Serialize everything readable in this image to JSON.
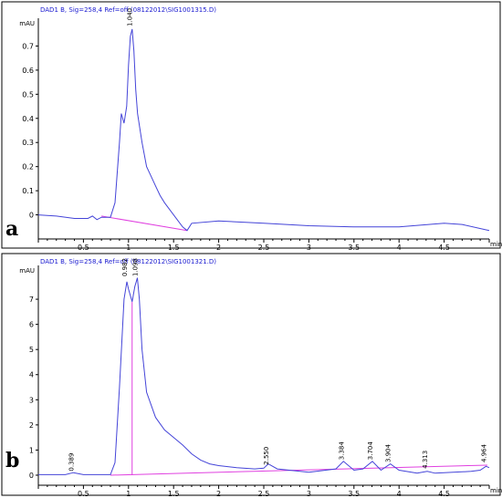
{
  "colors": {
    "trace": "#4444d8",
    "baseline": "#e040e0",
    "header": "#1a1ad0"
  },
  "chart_data": [
    {
      "panel": "a",
      "type": "line",
      "title": "DAD1 B, Sig=258,4 Ref=off (08122012\\SIG1001315.D)",
      "ylabel": "mAU",
      "xlabel": "min",
      "xlim": [
        0,
        5
      ],
      "ylim": [
        -0.1,
        0.8
      ],
      "xticks": [
        "0.5",
        "1",
        "1.5",
        "2",
        "2.5",
        "3",
        "3.5",
        "4",
        "4.5"
      ],
      "yticks": [
        "0",
        "0.1",
        "0.2",
        "0.3",
        "0.4",
        "0.5",
        "0.6",
        "0.7"
      ],
      "peak_labels": [
        {
          "x": 1.04,
          "y": 0.77,
          "label": "1.040"
        }
      ],
      "integration_baselines": [
        {
          "x": [
            0.7,
            1.65
          ],
          "y": [
            -0.005,
            -0.065
          ]
        }
      ],
      "series": [
        {
          "x": [
            0.0,
            0.2,
            0.4,
            0.55,
            0.6,
            0.65,
            0.7,
            0.8,
            0.85,
            0.9,
            0.92,
            0.95,
            0.98,
            1.0,
            1.02,
            1.04,
            1.06,
            1.08,
            1.1,
            1.15,
            1.2,
            1.25,
            1.3,
            1.35,
            1.4,
            1.5,
            1.6,
            1.65,
            1.7,
            2.0,
            2.5,
            3.0,
            3.5,
            4.0,
            4.5,
            4.7,
            5.0
          ],
          "y": [
            0.0,
            -0.005,
            -0.015,
            -0.015,
            -0.005,
            -0.02,
            -0.01,
            -0.01,
            0.05,
            0.3,
            0.42,
            0.38,
            0.45,
            0.62,
            0.74,
            0.77,
            0.68,
            0.52,
            0.42,
            0.3,
            0.2,
            0.16,
            0.12,
            0.08,
            0.05,
            0.0,
            -0.05,
            -0.065,
            -0.035,
            -0.025,
            -0.035,
            -0.045,
            -0.05,
            -0.05,
            -0.035,
            -0.04,
            -0.065
          ]
        }
      ]
    },
    {
      "panel": "b",
      "type": "line",
      "title": "DAD1 B, Sig=258,4 Ref=off (08122012\\SIG1001321.D)",
      "ylabel": "mAU",
      "xlabel": "min",
      "xlim": [
        0,
        5
      ],
      "ylim": [
        -0.4,
        8.2
      ],
      "xticks": [
        "0.5",
        "1",
        "1.5",
        "2",
        "2.5",
        "3",
        "3.5",
        "4",
        "4.5"
      ],
      "yticks": [
        "0",
        "1",
        "2",
        "3",
        "4",
        "5",
        "6",
        "7"
      ],
      "peak_labels": [
        {
          "x": 0.389,
          "y": 0.05,
          "label": "0.389"
        },
        {
          "x": 0.982,
          "y": 7.8,
          "label": "0.982"
        },
        {
          "x": 1.098,
          "y": 7.8,
          "label": "1.098"
        },
        {
          "x": 2.55,
          "y": 0.3,
          "label": "2.550"
        },
        {
          "x": 3.384,
          "y": 0.5,
          "label": "3.384"
        },
        {
          "x": 3.704,
          "y": 0.5,
          "label": "3.704"
        },
        {
          "x": 3.904,
          "y": 0.4,
          "label": "3.904"
        },
        {
          "x": 4.313,
          "y": 0.15,
          "label": "4.313"
        },
        {
          "x": 4.964,
          "y": 0.4,
          "label": "4.964"
        }
      ],
      "integration_baselines": [
        {
          "x": [
            0.8,
            4.98
          ],
          "y": [
            0.0,
            0.4
          ]
        }
      ],
      "peak_dividers": [
        {
          "x": 1.04,
          "y": [
            0.0,
            6.9
          ]
        }
      ],
      "series": [
        {
          "x": [
            0.0,
            0.3,
            0.389,
            0.5,
            0.8,
            0.85,
            0.9,
            0.95,
            0.982,
            1.0,
            1.04,
            1.07,
            1.098,
            1.12,
            1.15,
            1.2,
            1.3,
            1.4,
            1.5,
            1.6,
            1.7,
            1.8,
            1.9,
            2.0,
            2.2,
            2.4,
            2.5,
            2.55,
            2.65,
            3.0,
            3.3,
            3.384,
            3.5,
            3.6,
            3.704,
            3.8,
            3.904,
            4.0,
            4.2,
            4.313,
            4.4,
            4.8,
            4.9,
            4.964,
            5.0
          ],
          "y": [
            0.02,
            0.02,
            0.1,
            0.02,
            0.02,
            0.5,
            3.5,
            7.0,
            7.7,
            7.4,
            6.9,
            7.5,
            7.85,
            7.0,
            5.0,
            3.3,
            2.3,
            1.8,
            1.5,
            1.2,
            0.85,
            0.6,
            0.45,
            0.38,
            0.3,
            0.25,
            0.28,
            0.45,
            0.25,
            0.12,
            0.25,
            0.55,
            0.2,
            0.25,
            0.55,
            0.2,
            0.45,
            0.2,
            0.08,
            0.15,
            0.08,
            0.15,
            0.2,
            0.35,
            0.3
          ]
        }
      ]
    }
  ]
}
